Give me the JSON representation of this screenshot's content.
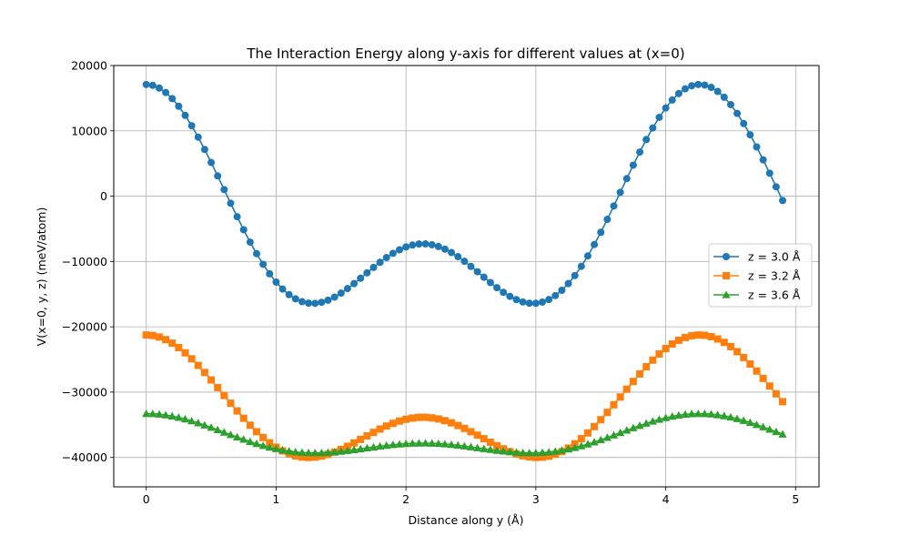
{
  "chart_data": {
    "type": "line",
    "title": "The Interaction Energy along y-axis for different values at (x=0)",
    "xlabel": "Distance along y (Å)",
    "ylabel": "V(x=0, y, z) (meV/atom)",
    "xlim": [
      -0.25,
      5.18
    ],
    "ylim": [
      -44500,
      20000
    ],
    "xticks": [
      0,
      1,
      2,
      3,
      4,
      5
    ],
    "yticks": [
      -40000,
      -30000,
      -20000,
      -10000,
      0,
      10000,
      20000
    ],
    "grid": true,
    "legend_position": "center-right",
    "series": [
      {
        "name": "z = 3.0 Å",
        "color": "#1f77b4",
        "marker": "circle",
        "y0": -4800,
        "amp1": 12200,
        "amp2": 9700,
        "x_start": 0,
        "x_step": 0.05,
        "count": 99
      },
      {
        "name": "z = 3.2 Å",
        "color": "#ff7f0e",
        "marker": "square",
        "y0": -33350,
        "amp1": 6300,
        "amp2": 5800,
        "x_start": 0,
        "x_step": 0.05,
        "count": 99
      },
      {
        "name": "z = 3.6 Å",
        "color": "#2ca02c",
        "marker": "triangle",
        "y0": -37240,
        "amp1": 2260,
        "amp2": 1690,
        "x_start": 0,
        "x_step": 0.05,
        "count": 99
      }
    ],
    "period_angstrom": 4.26
  }
}
